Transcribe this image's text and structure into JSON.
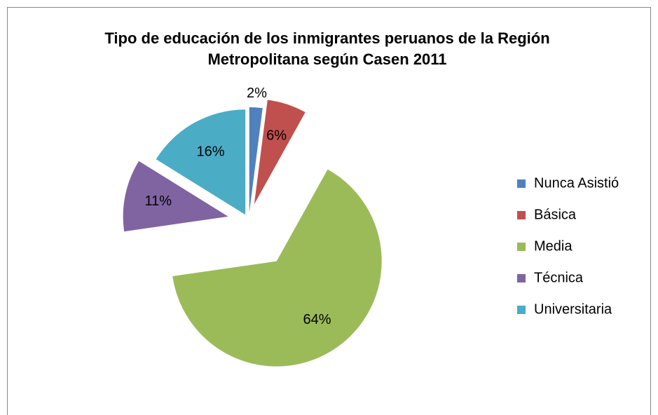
{
  "chart_data": {
    "type": "pie",
    "title": "Tipo de educación de los inmigrantes peruanos de la Región Metropolitana según Casen 2011",
    "categories": [
      "Nunca Asistió",
      "Básica",
      "Media",
      "Técnica",
      "Universitaria"
    ],
    "values": [
      2,
      6,
      64,
      11,
      16
    ],
    "value_labels": [
      "2%",
      "6%",
      "64%",
      "11%",
      "16%"
    ],
    "colors": [
      "#4f81bd",
      "#c0504d",
      "#9bbb59",
      "#8064a2",
      "#4bacc6"
    ],
    "legend": "right"
  }
}
